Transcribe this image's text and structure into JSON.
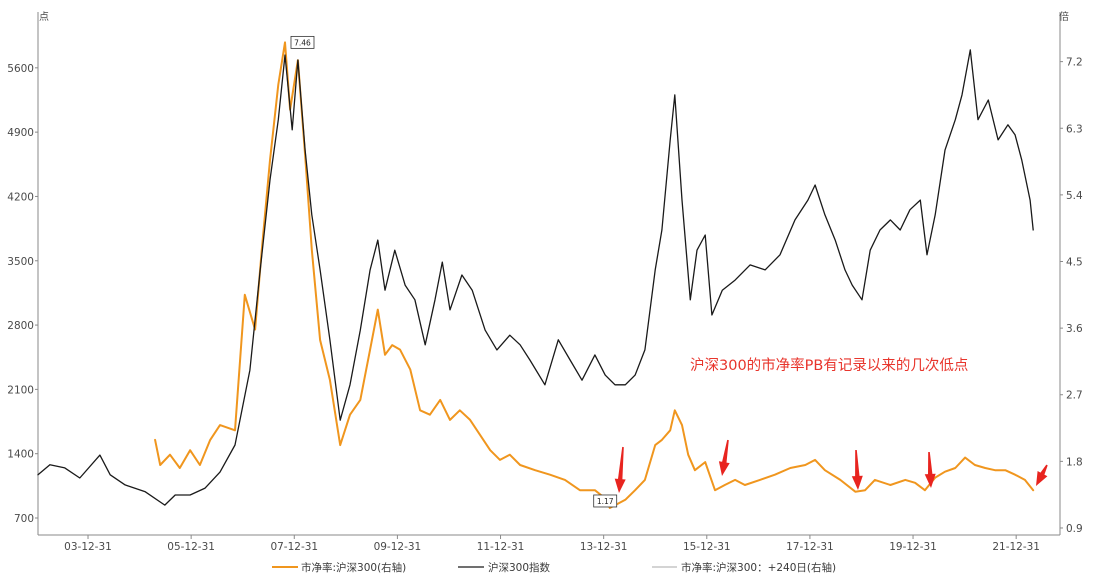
{
  "chart_data": {
    "type": "line",
    "title": "",
    "annotation": "沪深300的市净率PB有记录以来的几次低点",
    "left_axis": {
      "unit_label": "点",
      "ticks": [
        700,
        1400,
        2100,
        2800,
        3500,
        4200,
        4900,
        5600
      ],
      "ylim": [
        515,
        6175
      ]
    },
    "right_axis": {
      "unit_label": "倍",
      "ticks": [
        0.9,
        1.8,
        2.7,
        3.6,
        4.5,
        5.4,
        6.3,
        7.2
      ],
      "ylim": [
        0.805,
        7.83
      ]
    },
    "x_axis": {
      "xlim": [
        2003.03,
        2022.85
      ],
      "ticks": [
        {
          "label": "03-12-31",
          "x": 2004.0
        },
        {
          "label": "05-12-31",
          "x": 2006.0
        },
        {
          "label": "07-12-31",
          "x": 2008.0
        },
        {
          "label": "09-12-31",
          "x": 2010.0
        },
        {
          "label": "11-12-31",
          "x": 2012.0
        },
        {
          "label": "13-12-31",
          "x": 2014.0
        },
        {
          "label": "15-12-31",
          "x": 2016.0
        },
        {
          "label": "17-12-31",
          "x": 2018.0
        },
        {
          "label": "19-12-31",
          "x": 2020.0
        },
        {
          "label": "21-12-31",
          "x": 2022.0
        }
      ]
    },
    "series": [
      {
        "name": "市净率:沪深300(右轴)",
        "axis": "right",
        "color": "#f0961e",
        "points": [
          [
            2005.3,
            2.09
          ],
          [
            2005.4,
            1.75
          ],
          [
            2005.59,
            1.89
          ],
          [
            2005.78,
            1.71
          ],
          [
            2005.98,
            1.95
          ],
          [
            2006.17,
            1.75
          ],
          [
            2006.37,
            2.09
          ],
          [
            2006.56,
            2.29
          ],
          [
            2006.85,
            2.22
          ],
          [
            2007.04,
            4.05
          ],
          [
            2007.24,
            3.58
          ],
          [
            2007.37,
            4.66
          ],
          [
            2007.53,
            5.87
          ],
          [
            2007.69,
            6.89
          ],
          [
            2007.82,
            7.46
          ],
          [
            2007.92,
            6.55
          ],
          [
            2008.07,
            7.22
          ],
          [
            2008.21,
            5.94
          ],
          [
            2008.34,
            4.66
          ],
          [
            2008.5,
            3.44
          ],
          [
            2008.69,
            2.9
          ],
          [
            2008.89,
            2.02
          ],
          [
            2009.08,
            2.43
          ],
          [
            2009.28,
            2.63
          ],
          [
            2009.47,
            3.31
          ],
          [
            2009.62,
            3.85
          ],
          [
            2009.76,
            3.24
          ],
          [
            2009.9,
            3.37
          ],
          [
            2010.05,
            3.31
          ],
          [
            2010.25,
            3.04
          ],
          [
            2010.44,
            2.49
          ],
          [
            2010.63,
            2.43
          ],
          [
            2010.83,
            2.63
          ],
          [
            2011.02,
            2.36
          ],
          [
            2011.21,
            2.49
          ],
          [
            2011.41,
            2.36
          ],
          [
            2011.6,
            2.16
          ],
          [
            2011.8,
            1.95
          ],
          [
            2011.99,
            1.82
          ],
          [
            2012.18,
            1.89
          ],
          [
            2012.38,
            1.75
          ],
          [
            2012.67,
            1.68
          ],
          [
            2012.96,
            1.62
          ],
          [
            2013.25,
            1.55
          ],
          [
            2013.54,
            1.41
          ],
          [
            2013.83,
            1.41
          ],
          [
            2014.03,
            1.3
          ],
          [
            2014.12,
            1.17
          ],
          [
            2014.42,
            1.28
          ],
          [
            2014.61,
            1.41
          ],
          [
            2014.8,
            1.55
          ],
          [
            2015.0,
            2.02
          ],
          [
            2015.13,
            2.09
          ],
          [
            2015.29,
            2.22
          ],
          [
            2015.38,
            2.49
          ],
          [
            2015.52,
            2.29
          ],
          [
            2015.64,
            1.89
          ],
          [
            2015.77,
            1.68
          ],
          [
            2015.97,
            1.79
          ],
          [
            2016.16,
            1.41
          ],
          [
            2016.35,
            1.48
          ],
          [
            2016.55,
            1.55
          ],
          [
            2016.74,
            1.48
          ],
          [
            2017.03,
            1.55
          ],
          [
            2017.32,
            1.62
          ],
          [
            2017.62,
            1.71
          ],
          [
            2017.91,
            1.75
          ],
          [
            2018.1,
            1.82
          ],
          [
            2018.29,
            1.68
          ],
          [
            2018.59,
            1.55
          ],
          [
            2018.88,
            1.39
          ],
          [
            2019.07,
            1.41
          ],
          [
            2019.26,
            1.55
          ],
          [
            2019.56,
            1.48
          ],
          [
            2019.85,
            1.55
          ],
          [
            2020.04,
            1.51
          ],
          [
            2020.23,
            1.41
          ],
          [
            2020.43,
            1.58
          ],
          [
            2020.62,
            1.66
          ],
          [
            2020.82,
            1.71
          ],
          [
            2021.01,
            1.85
          ],
          [
            2021.2,
            1.75
          ],
          [
            2021.4,
            1.71
          ],
          [
            2021.59,
            1.68
          ],
          [
            2021.79,
            1.68
          ],
          [
            2021.98,
            1.62
          ],
          [
            2022.17,
            1.55
          ],
          [
            2022.33,
            1.41
          ]
        ]
      },
      {
        "name": "沪深300指数",
        "axis": "left",
        "color": "#1a1a1a",
        "points": [
          [
            2003.03,
            1170
          ],
          [
            2003.26,
            1280
          ],
          [
            2003.55,
            1245
          ],
          [
            2003.84,
            1135
          ],
          [
            2004.23,
            1385
          ],
          [
            2004.43,
            1170
          ],
          [
            2004.72,
            1060
          ],
          [
            2005.11,
            985
          ],
          [
            2005.49,
            840
          ],
          [
            2005.69,
            950
          ],
          [
            2005.98,
            950
          ],
          [
            2006.27,
            1025
          ],
          [
            2006.56,
            1200
          ],
          [
            2006.85,
            1495
          ],
          [
            2007.14,
            2310
          ],
          [
            2007.34,
            3400
          ],
          [
            2007.53,
            4380
          ],
          [
            2007.69,
            5035
          ],
          [
            2007.82,
            5740
          ],
          [
            2007.96,
            4925
          ],
          [
            2008.07,
            5685
          ],
          [
            2008.21,
            4705
          ],
          [
            2008.34,
            4000
          ],
          [
            2008.5,
            3400
          ],
          [
            2008.69,
            2640
          ],
          [
            2008.89,
            1765
          ],
          [
            2009.08,
            2150
          ],
          [
            2009.28,
            2745
          ],
          [
            2009.47,
            3400
          ],
          [
            2009.62,
            3725
          ],
          [
            2009.76,
            3180
          ],
          [
            2009.95,
            3615
          ],
          [
            2010.15,
            3235
          ],
          [
            2010.34,
            3075
          ],
          [
            2010.54,
            2585
          ],
          [
            2010.73,
            3075
          ],
          [
            2010.87,
            3485
          ],
          [
            2011.02,
            2965
          ],
          [
            2011.25,
            3345
          ],
          [
            2011.45,
            3180
          ],
          [
            2011.7,
            2745
          ],
          [
            2011.93,
            2530
          ],
          [
            2012.18,
            2690
          ],
          [
            2012.38,
            2585
          ],
          [
            2012.57,
            2420
          ],
          [
            2012.86,
            2150
          ],
          [
            2013.12,
            2640
          ],
          [
            2013.35,
            2420
          ],
          [
            2013.58,
            2200
          ],
          [
            2013.83,
            2475
          ],
          [
            2014.03,
            2255
          ],
          [
            2014.22,
            2150
          ],
          [
            2014.42,
            2150
          ],
          [
            2014.61,
            2255
          ],
          [
            2014.8,
            2530
          ],
          [
            2015.0,
            3400
          ],
          [
            2015.13,
            3835
          ],
          [
            2015.29,
            4815
          ],
          [
            2015.38,
            5305
          ],
          [
            2015.52,
            4160
          ],
          [
            2015.68,
            3075
          ],
          [
            2015.81,
            3615
          ],
          [
            2015.97,
            3780
          ],
          [
            2016.1,
            2910
          ],
          [
            2016.3,
            3180
          ],
          [
            2016.55,
            3290
          ],
          [
            2016.84,
            3455
          ],
          [
            2017.13,
            3400
          ],
          [
            2017.42,
            3565
          ],
          [
            2017.71,
            3945
          ],
          [
            2017.96,
            4160
          ],
          [
            2018.1,
            4325
          ],
          [
            2018.29,
            4000
          ],
          [
            2018.49,
            3725
          ],
          [
            2018.68,
            3400
          ],
          [
            2018.82,
            3235
          ],
          [
            2019.01,
            3075
          ],
          [
            2019.17,
            3615
          ],
          [
            2019.36,
            3835
          ],
          [
            2019.56,
            3945
          ],
          [
            2019.75,
            3835
          ],
          [
            2019.94,
            4055
          ],
          [
            2020.14,
            4160
          ],
          [
            2020.27,
            3565
          ],
          [
            2020.43,
            4000
          ],
          [
            2020.62,
            4705
          ],
          [
            2020.82,
            5035
          ],
          [
            2020.95,
            5305
          ],
          [
            2021.11,
            5795
          ],
          [
            2021.26,
            5035
          ],
          [
            2021.46,
            5250
          ],
          [
            2021.65,
            4815
          ],
          [
            2021.84,
            4980
          ],
          [
            2021.98,
            4870
          ],
          [
            2022.11,
            4595
          ],
          [
            2022.27,
            4160
          ],
          [
            2022.33,
            3835
          ]
        ]
      },
      {
        "name": "市净率:沪深300：+240日(右轴)",
        "axis": "right",
        "color": "#a8a8a8",
        "points": []
      }
    ],
    "value_labels": [
      {
        "text": "7.46",
        "x": 2007.82,
        "y": 7.46,
        "axis": "right",
        "placement": "right"
      },
      {
        "text": "1.17",
        "x": 2014.03,
        "y": 1.17,
        "axis": "right",
        "placement": "above"
      }
    ]
  },
  "colors": {
    "annotation": "#e8352c",
    "arrow": "#e8241f",
    "axis": "#8a8a8a",
    "tick_text": "#4a4a4a"
  }
}
